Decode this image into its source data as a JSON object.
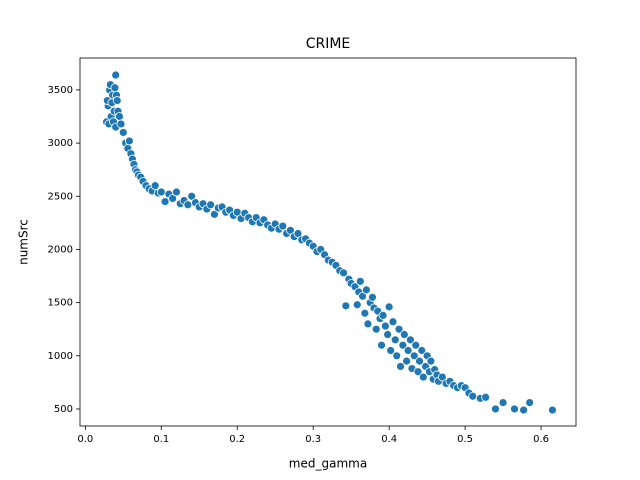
{
  "chart_data": {
    "type": "scatter",
    "title": "CRIME",
    "x_label": "med_gamma",
    "y_label": "numSrc",
    "color": "#1f77b4",
    "x": [
      0.028,
      0.03,
      0.032,
      0.034,
      0.036,
      0.038,
      0.04,
      0.029,
      0.031,
      0.033,
      0.035,
      0.037,
      0.039,
      0.041,
      0.043,
      0.045,
      0.04,
      0.042,
      0.047,
      0.05,
      0.053,
      0.056,
      0.058,
      0.06,
      0.062,
      0.064,
      0.066,
      0.068,
      0.07,
      0.073,
      0.076,
      0.08,
      0.084,
      0.088,
      0.092,
      0.096,
      0.1,
      0.105,
      0.11,
      0.115,
      0.12,
      0.125,
      0.13,
      0.135,
      0.14,
      0.145,
      0.15,
      0.155,
      0.16,
      0.165,
      0.17,
      0.175,
      0.18,
      0.185,
      0.19,
      0.195,
      0.2,
      0.205,
      0.21,
      0.215,
      0.22,
      0.225,
      0.23,
      0.235,
      0.24,
      0.245,
      0.25,
      0.255,
      0.26,
      0.265,
      0.27,
      0.275,
      0.28,
      0.285,
      0.29,
      0.295,
      0.3,
      0.305,
      0.31,
      0.315,
      0.32,
      0.325,
      0.33,
      0.335,
      0.34,
      0.343,
      0.347,
      0.35,
      0.355,
      0.358,
      0.36,
      0.362,
      0.365,
      0.368,
      0.37,
      0.372,
      0.375,
      0.378,
      0.38,
      0.383,
      0.385,
      0.388,
      0.39,
      0.392,
      0.395,
      0.398,
      0.4,
      0.402,
      0.405,
      0.408,
      0.41,
      0.413,
      0.415,
      0.418,
      0.42,
      0.423,
      0.425,
      0.428,
      0.43,
      0.433,
      0.435,
      0.438,
      0.44,
      0.443,
      0.445,
      0.448,
      0.45,
      0.453,
      0.455,
      0.458,
      0.46,
      0.463,
      0.465,
      0.47,
      0.475,
      0.48,
      0.485,
      0.49,
      0.495,
      0.5,
      0.505,
      0.51,
      0.52,
      0.527,
      0.54,
      0.55,
      0.565,
      0.577,
      0.585,
      0.615
    ],
    "y": [
      3200,
      3350,
      3500,
      3250,
      3450,
      3300,
      3640,
      3400,
      3180,
      3550,
      3380,
      3200,
      3520,
      3450,
      3300,
      3250,
      3150,
      3400,
      3180,
      3100,
      3000,
      2950,
      3020,
      2900,
      2850,
      2800,
      2750,
      2730,
      2700,
      2680,
      2640,
      2600,
      2570,
      2550,
      2600,
      2530,
      2540,
      2450,
      2520,
      2480,
      2540,
      2430,
      2460,
      2420,
      2500,
      2440,
      2400,
      2430,
      2380,
      2420,
      2330,
      2390,
      2400,
      2350,
      2370,
      2320,
      2350,
      2290,
      2340,
      2300,
      2260,
      2300,
      2250,
      2280,
      2230,
      2200,
      2240,
      2190,
      2220,
      2150,
      2180,
      2120,
      2150,
      2090,
      2100,
      2060,
      2030,
      1980,
      2000,
      1950,
      1900,
      1880,
      1850,
      1800,
      1780,
      1470,
      1720,
      1680,
      1650,
      1480,
      1600,
      1700,
      1560,
      1400,
      1620,
      1300,
      1500,
      1550,
      1450,
      1250,
      1420,
      1350,
      1100,
      1380,
      1280,
      1200,
      1460,
      1050,
      1320,
      1150,
      1000,
      1250,
      900,
      1100,
      1200,
      950,
      1050,
      1150,
      880,
      1000,
      1100,
      850,
      950,
      1050,
      800,
      900,
      1000,
      850,
      950,
      780,
      870,
      820,
      760,
      800,
      740,
      760,
      720,
      700,
      720,
      700,
      650,
      620,
      600,
      610,
      500,
      560,
      500,
      490,
      560,
      490
    ],
    "xlim": [
      -0.007,
      0.646
    ],
    "ylim": [
      340,
      3800
    ],
    "xticks": [
      {
        "value": 0,
        "label": "0.0"
      },
      0.1,
      0.2,
      0.3,
      0.4,
      0.5,
      0.6
    ],
    "yticks": [
      500,
      1000,
      1500,
      2000,
      2500,
      3000,
      3500
    ]
  }
}
